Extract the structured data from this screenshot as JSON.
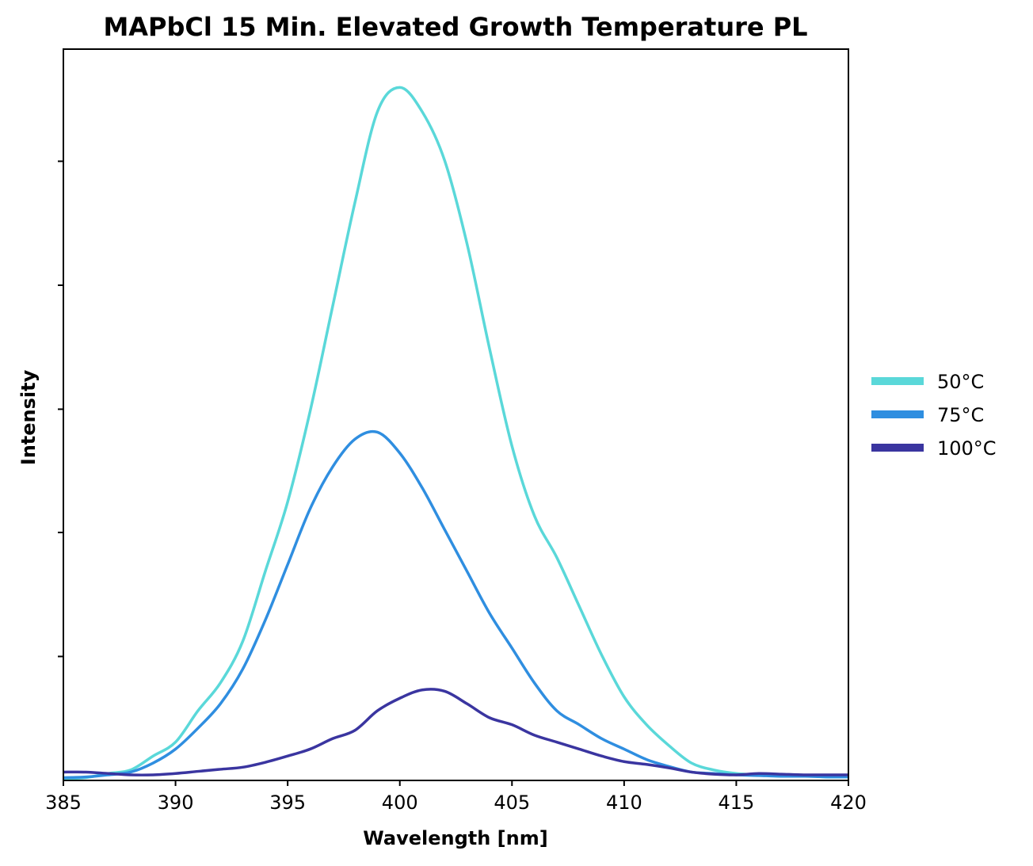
{
  "chart_data": {
    "type": "line",
    "title": "MAPbCl 15 Min. Elevated Growth Temperature PL",
    "xlabel": "Wavelength [nm]",
    "ylabel": "Intensity",
    "xlim": [
      385,
      420
    ],
    "ylim": [
      0,
      1.05
    ],
    "x_ticks": [
      "385",
      "390",
      "395",
      "400",
      "405",
      "410",
      "415",
      "420"
    ],
    "y_ticks_unlabeled": [
      0.178,
      0.356,
      0.533,
      0.711,
      0.889
    ],
    "grid": false,
    "legend_position": "right",
    "x": [
      385,
      386,
      387,
      388,
      389,
      390,
      391,
      392,
      393,
      394,
      395,
      396,
      397,
      398,
      399,
      400,
      401,
      402,
      403,
      404,
      405,
      406,
      407,
      408,
      409,
      410,
      411,
      412,
      413,
      414,
      415,
      416,
      417,
      418,
      419,
      420
    ],
    "series": [
      {
        "name": "50°C",
        "color": "#5ad8d9",
        "values": [
          0.003,
          0.004,
          0.01,
          0.015,
          0.035,
          0.055,
          0.1,
          0.14,
          0.2,
          0.3,
          0.4,
          0.53,
          0.68,
          0.83,
          0.96,
          0.995,
          0.96,
          0.89,
          0.77,
          0.62,
          0.48,
          0.38,
          0.32,
          0.25,
          0.18,
          0.12,
          0.08,
          0.05,
          0.025,
          0.015,
          0.01,
          0.008,
          0.006,
          0.007,
          0.005,
          0.005
        ]
      },
      {
        "name": "75°C",
        "color": "#2f8ee0",
        "values": [
          0.004,
          0.005,
          0.008,
          0.012,
          0.025,
          0.045,
          0.075,
          0.11,
          0.16,
          0.23,
          0.31,
          0.39,
          0.45,
          0.49,
          0.5,
          0.47,
          0.42,
          0.36,
          0.3,
          0.24,
          0.19,
          0.14,
          0.1,
          0.08,
          0.06,
          0.045,
          0.03,
          0.02,
          0.012,
          0.01,
          0.008,
          0.007,
          0.006,
          0.006,
          0.005,
          0.005
        ]
      },
      {
        "name": "100°C",
        "color": "#3a35a0",
        "values": [
          0.012,
          0.012,
          0.01,
          0.008,
          0.008,
          0.01,
          0.013,
          0.016,
          0.019,
          0.026,
          0.035,
          0.045,
          0.06,
          0.072,
          0.1,
          0.118,
          0.13,
          0.128,
          0.11,
          0.09,
          0.08,
          0.065,
          0.055,
          0.045,
          0.035,
          0.027,
          0.023,
          0.018,
          0.012,
          0.009,
          0.008,
          0.01,
          0.009,
          0.008,
          0.008,
          0.008
        ]
      }
    ]
  }
}
